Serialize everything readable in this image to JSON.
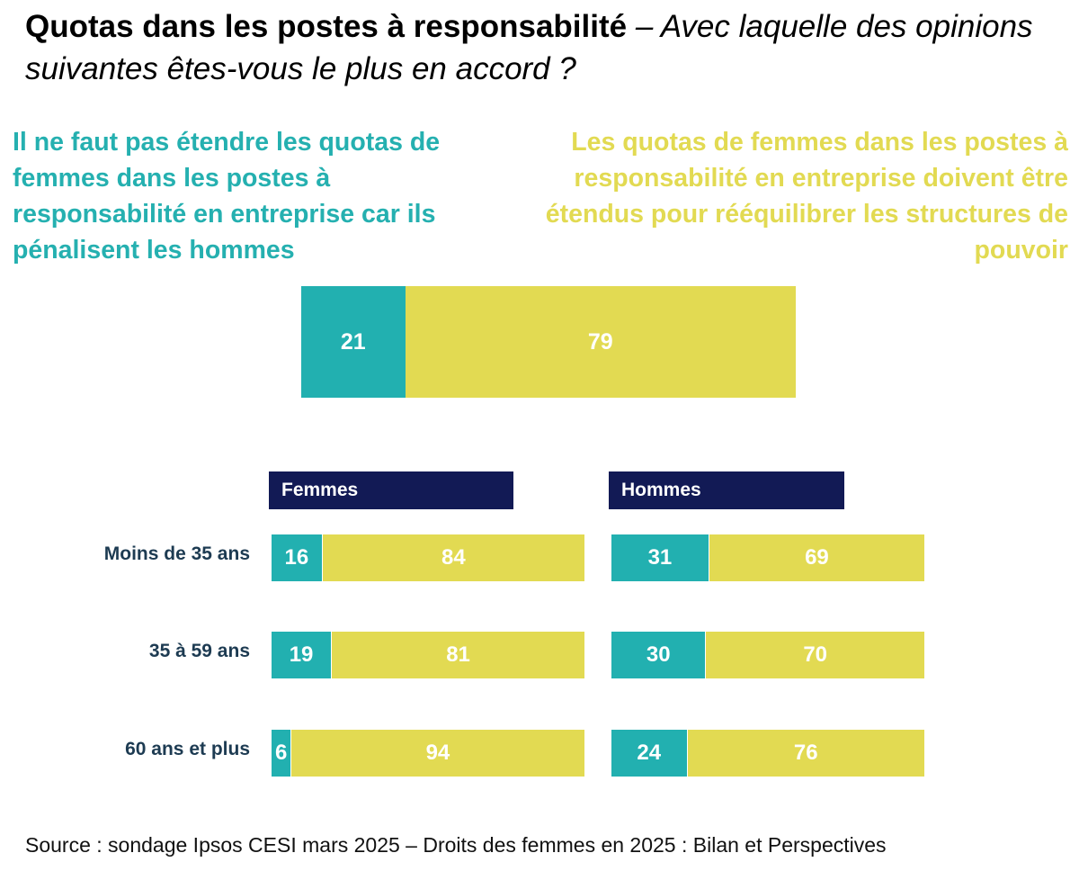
{
  "title": {
    "bold": "Quotas dans les postes à responsabilité",
    "italic": " – Avec laquelle des opinions suivantes êtes-vous le plus en accord ?"
  },
  "opinions": {
    "left": "Il ne faut pas étendre les quotas de femmes dans les postes à responsabilité en entreprise car ils pénalisent les hommes",
    "right": "Les quotas de femmes dans les postes à responsabilité en entreprise doivent être étendus pour rééquilibrer les structures de pouvoir"
  },
  "colors": {
    "left": "#22b0b0",
    "right": "#e2da52",
    "header": "#121a55"
  },
  "chart_data": {
    "type": "bar",
    "stacked": true,
    "orientation": "horizontal",
    "unit": "%",
    "overall": {
      "values": [
        21,
        79
      ]
    },
    "panels": [
      {
        "name": "Femmes",
        "rows": [
          [
            16,
            84
          ],
          [
            19,
            81
          ],
          [
            6,
            94
          ]
        ]
      },
      {
        "name": "Hommes",
        "rows": [
          [
            31,
            69
          ],
          [
            30,
            70
          ],
          [
            24,
            76
          ]
        ]
      }
    ],
    "categories": [
      "Moins de 35 ans",
      "35 à 59 ans",
      "60 ans et plus"
    ]
  },
  "source": "Source : sondage Ipsos CESI mars 2025 – Droits des femmes en 2025 : Bilan et Perspectives"
}
